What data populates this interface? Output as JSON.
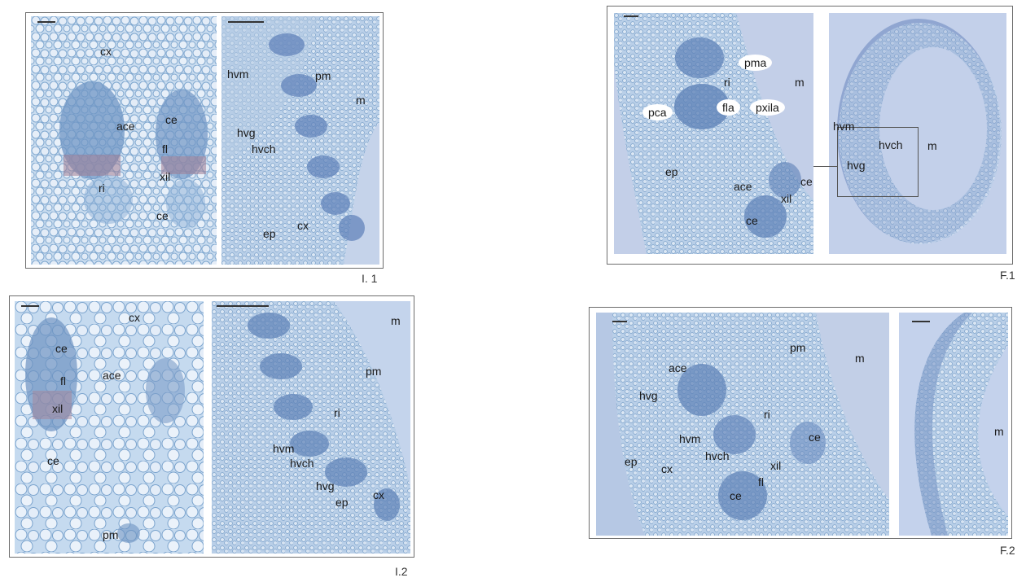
{
  "figures": {
    "I1": {
      "label": "I. 1",
      "left_labels": [
        "cx",
        "ace",
        "ce",
        "fl",
        "xil",
        "ri",
        "ce"
      ],
      "right_labels": [
        "hvm",
        "pm",
        "m",
        "hvg",
        "hvch",
        "cx",
        "ep"
      ]
    },
    "I2": {
      "label": "I.2",
      "left_labels": [
        "cx",
        "ce",
        "ace",
        "fl",
        "xil",
        "ce",
        "pm"
      ],
      "right_labels": [
        "m",
        "pm",
        "ri",
        "hvm",
        "hvch",
        "hvg",
        "cx",
        "ep"
      ]
    },
    "F1": {
      "label": "F.1",
      "left_labels": [
        "pma",
        "m",
        "ri",
        "pca",
        "fla",
        "pxila",
        "ep",
        "ace",
        "ce",
        "xil",
        "ce"
      ],
      "right_labels": [
        "hvm",
        "hvch",
        "m",
        "hvg"
      ]
    },
    "F2": {
      "label": "F.2",
      "left_labels": [
        "pm",
        "m",
        "ace",
        "hvg",
        "ri",
        "ce",
        "hvm",
        "hvch",
        "xil",
        "ep",
        "cx",
        "fl",
        "ce"
      ],
      "right_labels": [
        "m"
      ]
    }
  }
}
